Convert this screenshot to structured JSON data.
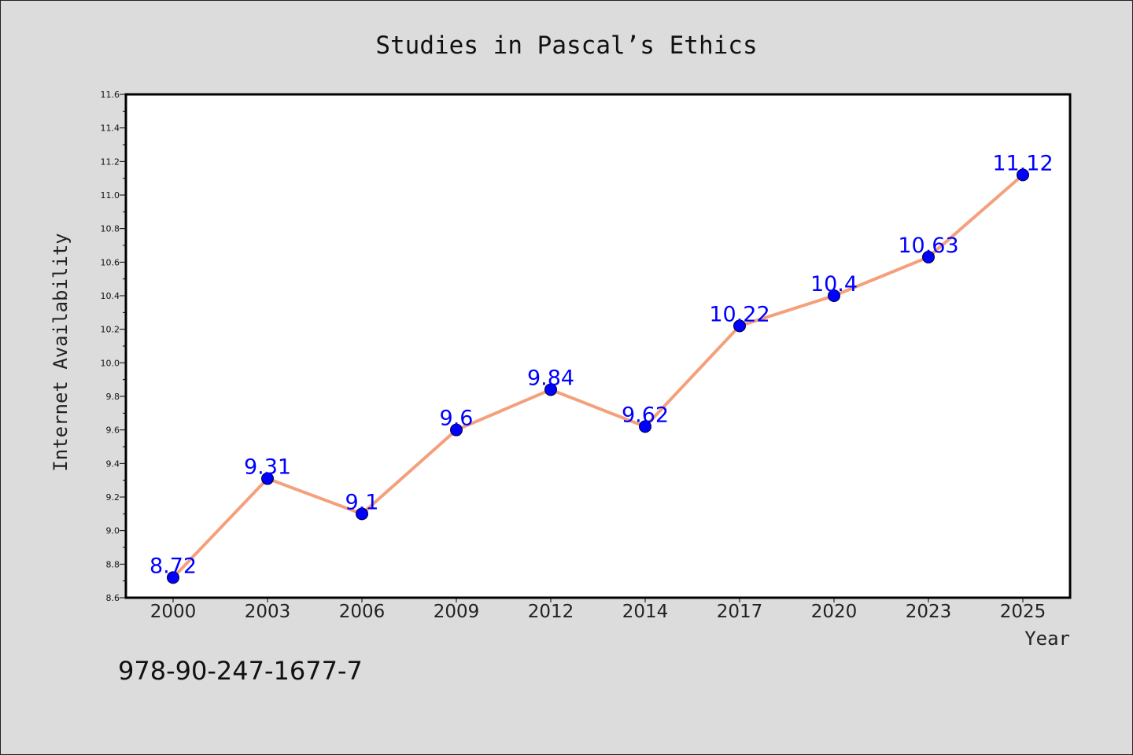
{
  "chart_data": {
    "type": "line",
    "title": "Studies in Pascal’s Ethics",
    "xlabel": "Year",
    "ylabel": "Internet Availability",
    "categories": [
      "2000",
      "2003",
      "2006",
      "2009",
      "2012",
      "2014",
      "2017",
      "2020",
      "2023",
      "2025"
    ],
    "series": [
      {
        "values": [
          8.72,
          9.31,
          9.1,
          9.6,
          9.84,
          9.62,
          10.22,
          10.4,
          10.63,
          11.12
        ],
        "data_labels": [
          "8.72",
          "9.31",
          "9.1",
          "9.6",
          "9.84",
          "9.62",
          "10.22",
          "10.4",
          "10.63",
          "11.12"
        ]
      }
    ],
    "ylim": [
      8.6,
      11.6
    ],
    "yticks": [
      "8.6",
      "8.8",
      "9.0",
      "9.2",
      "9.4",
      "9.6",
      "9.8",
      "10.0",
      "10.2",
      "10.4",
      "10.6",
      "10.8",
      "11.0",
      "11.2",
      "11.4",
      "11.6"
    ],
    "grid": false,
    "legend": "none",
    "line_color": "#f4a07c",
    "marker_color": "#0000ff",
    "data_label_color": "#0000ff",
    "plot_background": "#ffffff",
    "figure_background": "#dcdcdc"
  },
  "footnote": "978-90-247-1677-7"
}
